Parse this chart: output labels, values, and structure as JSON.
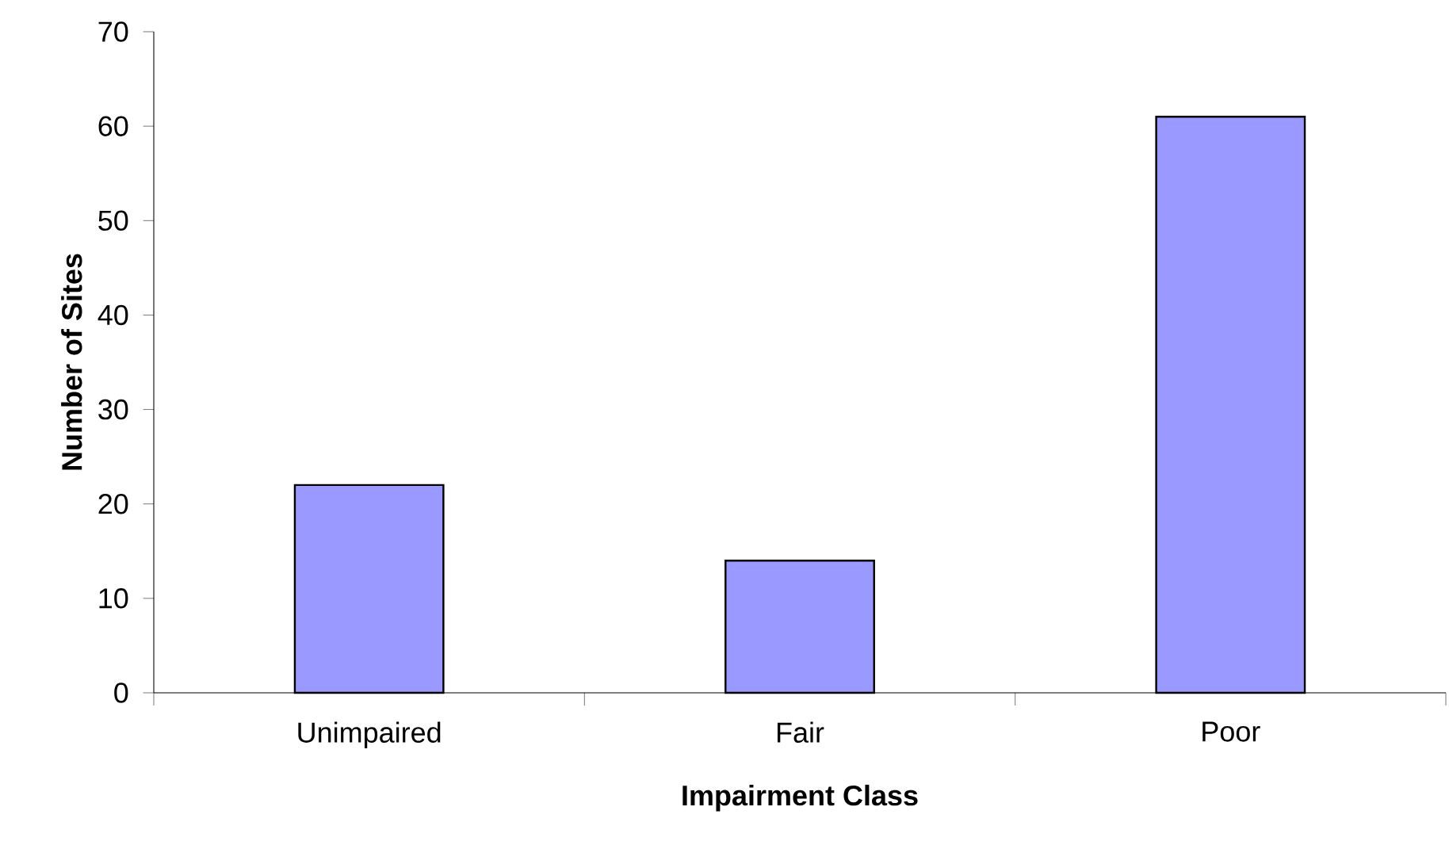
{
  "chart_data": {
    "type": "bar",
    "xlabel": "Impairment Class",
    "ylabel": "Number of Sites",
    "categories": [
      "Unimpaired",
      "Fair",
      "Poor"
    ],
    "values": [
      22,
      14,
      61
    ],
    "color": "#9999ff",
    "ylim": [
      0,
      70
    ],
    "yticks": [
      0,
      10,
      20,
      30,
      40,
      50,
      60,
      70
    ],
    "grid": false
  }
}
